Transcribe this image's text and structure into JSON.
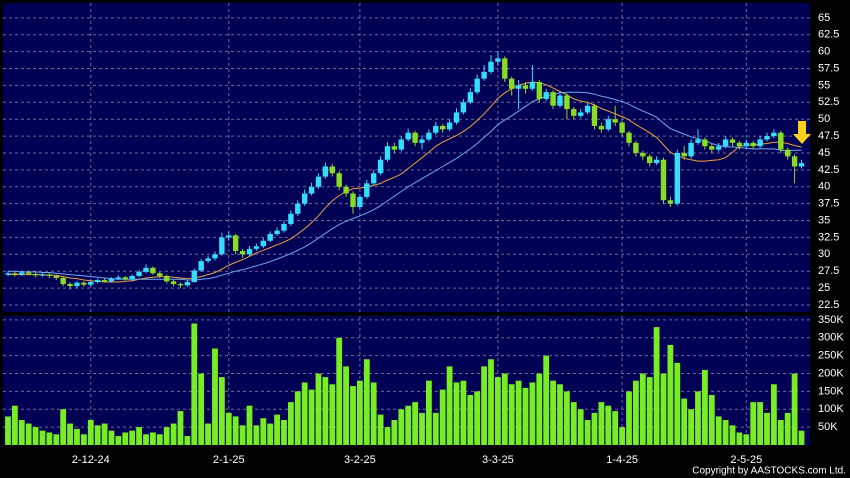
{
  "chart_data": [
    {
      "type": "candlestick",
      "up_color": "#33ddff",
      "down_color": "#88dd22",
      "xlim": [
        -0.72,
        116.23
      ],
      "ylim": [
        21.46,
        67.2
      ],
      "yticks": [
        22.5,
        25,
        27.5,
        30,
        32.5,
        35,
        37.5,
        40,
        42.5,
        45,
        47.5,
        50,
        52.5,
        55,
        57.5,
        60,
        62.5,
        65
      ],
      "xticks": [
        12,
        32,
        51,
        71,
        89,
        107
      ],
      "grid": true,
      "open": [
        27.0,
        27.2,
        27.0,
        27.3,
        27.1,
        26.9,
        27.0,
        26.8,
        26.5,
        25.6,
        25.3,
        25.8,
        25.5,
        25.9,
        26.2,
        26.0,
        26.4,
        26.6,
        26.3,
        26.8,
        27.4,
        28.0,
        27.2,
        26.8,
        26.0,
        25.6,
        25.4,
        25.9,
        27.6,
        29.0,
        29.4,
        30.0,
        32.5,
        32.8,
        30.5,
        30.0,
        30.8,
        31.2,
        32.0,
        33.0,
        33.5,
        34.5,
        36.0,
        37.5,
        39.0,
        40.0,
        41.5,
        43.0,
        42.0,
        40.0,
        39.0,
        37.0,
        38.5,
        40.5,
        42.0,
        44.0,
        46.0,
        45.5,
        47.0,
        48.0,
        46.5,
        47.0,
        48.0,
        49.0,
        48.5,
        49.5,
        51.0,
        52.5,
        54.0,
        56.0,
        57.0,
        58.5,
        59.0,
        56.0,
        54.5,
        55.0,
        54.5,
        55.5,
        53.0,
        54.0,
        52.0,
        53.5,
        51.5,
        50.5,
        51.0,
        52.0,
        49.0,
        48.5,
        50.0,
        49.5,
        48.0,
        46.5,
        45.0,
        44.5,
        43.5,
        44.0,
        38.0,
        37.5,
        45.0,
        44.5,
        46.5,
        47.0,
        46.0,
        45.5,
        46.0,
        47.0,
        46.5,
        46.0,
        46.5,
        46.0,
        47.0,
        47.5,
        48.0,
        45.5,
        44.5,
        43.0
      ],
      "high": [
        27.5,
        27.5,
        27.6,
        27.6,
        27.3,
        27.3,
        27.2,
        27.0,
        26.7,
        25.9,
        26.0,
        26.0,
        26.1,
        26.4,
        26.4,
        26.6,
        26.9,
        26.8,
        27.0,
        27.7,
        28.5,
        28.2,
        27.4,
        27.0,
        26.2,
        25.8,
        26.2,
        27.9,
        29.3,
        29.8,
        30.4,
        33.2,
        33.4,
        33.0,
        30.8,
        31.2,
        31.6,
        32.4,
        33.4,
        34.0,
        35.0,
        36.5,
        38.0,
        39.6,
        40.6,
        42.0,
        43.6,
        43.4,
        42.3,
        40.3,
        39.3,
        38.9,
        41.0,
        42.5,
        44.5,
        46.6,
        46.5,
        47.5,
        48.6,
        48.3,
        47.6,
        48.5,
        49.6,
        49.3,
        50.0,
        51.6,
        53.0,
        54.6,
        56.6,
        58.0,
        59.5,
        60.0,
        59.3,
        56.3,
        55.8,
        55.5,
        58.0,
        55.8,
        54.5,
        54.3,
        54.0,
        53.8,
        51.8,
        51.5,
        52.5,
        52.3,
        49.5,
        50.5,
        52.0,
        49.8,
        48.3,
        46.8,
        45.3,
        44.8,
        44.5,
        44.3,
        38.5,
        45.5,
        46.0,
        47.0,
        48.5,
        47.3,
        46.3,
        46.5,
        47.5,
        47.3,
        46.8,
        47.0,
        46.8,
        47.5,
        48.0,
        48.5,
        48.3,
        45.8,
        44.8,
        44.0
      ],
      "low": [
        26.8,
        26.7,
        26.8,
        26.9,
        26.6,
        26.7,
        26.5,
        26.2,
        25.3,
        24.8,
        25.0,
        25.2,
        25.3,
        25.7,
        25.8,
        25.8,
        26.2,
        26.1,
        26.1,
        26.6,
        27.2,
        27.0,
        26.5,
        25.7,
        25.3,
        25.0,
        25.2,
        25.8,
        27.4,
        28.7,
        29.1,
        29.8,
        32.0,
        30.0,
        29.5,
        29.7,
        30.5,
        30.9,
        31.8,
        32.7,
        33.2,
        34.2,
        35.7,
        37.2,
        38.7,
        39.7,
        41.2,
        41.5,
        39.5,
        38.5,
        36.0,
        36.7,
        38.2,
        40.2,
        41.7,
        43.7,
        45.0,
        45.2,
        46.7,
        46.0,
        45.5,
        46.7,
        47.7,
        48.0,
        48.2,
        49.2,
        50.7,
        52.2,
        53.7,
        55.7,
        56.7,
        58.0,
        55.5,
        53.5,
        51.5,
        53.8,
        54.2,
        52.5,
        52.7,
        51.5,
        51.7,
        50.0,
        50.0,
        50.2,
        50.7,
        48.5,
        48.0,
        48.2,
        49.0,
        47.5,
        46.0,
        44.5,
        44.0,
        43.0,
        43.2,
        37.5,
        37.0,
        37.2,
        44.0,
        44.2,
        46.2,
        45.5,
        45.0,
        45.2,
        45.7,
        46.0,
        45.5,
        45.7,
        45.5,
        45.7,
        46.7,
        47.2,
        45.0,
        44.0,
        40.5,
        42.7
      ],
      "close": [
        27.2,
        27.0,
        27.3,
        27.1,
        26.9,
        27.0,
        26.8,
        26.5,
        25.6,
        25.3,
        25.8,
        25.5,
        25.9,
        26.2,
        26.0,
        26.4,
        26.6,
        26.3,
        26.8,
        27.4,
        28.0,
        27.2,
        26.8,
        26.0,
        25.6,
        25.4,
        25.9,
        27.6,
        29.0,
        29.4,
        30.0,
        32.5,
        32.8,
        30.5,
        30.0,
        30.8,
        31.2,
        32.0,
        33.0,
        33.5,
        34.5,
        36.0,
        37.5,
        39.0,
        40.0,
        41.5,
        43.0,
        42.0,
        40.0,
        39.0,
        37.0,
        38.5,
        40.5,
        42.0,
        44.0,
        46.0,
        45.5,
        47.0,
        48.0,
        46.5,
        47.0,
        48.0,
        49.0,
        48.5,
        49.5,
        51.0,
        52.5,
        54.0,
        56.0,
        57.0,
        58.5,
        59.0,
        56.0,
        54.5,
        55.0,
        54.5,
        55.5,
        53.0,
        54.0,
        52.0,
        53.5,
        51.5,
        50.5,
        51.0,
        52.0,
        49.0,
        48.5,
        50.0,
        49.5,
        48.0,
        46.5,
        45.0,
        44.5,
        43.5,
        44.0,
        38.0,
        37.5,
        45.0,
        44.5,
        46.5,
        47.0,
        46.0,
        45.5,
        46.0,
        47.0,
        46.5,
        46.0,
        46.5,
        46.0,
        47.0,
        47.5,
        48.0,
        45.5,
        44.5,
        43.0,
        43.5
      ],
      "series": [
        {
          "color": "#f0a040",
          "values": [
            27.0,
            27.0,
            27.0,
            27.0,
            27.0,
            27.0,
            26.9,
            26.9,
            26.7,
            26.5,
            26.4,
            26.2,
            26.1,
            26.0,
            25.9,
            25.9,
            25.9,
            26.0,
            26.1,
            26.3,
            26.5,
            26.6,
            26.7,
            26.7,
            26.6,
            26.5,
            26.4,
            26.5,
            26.7,
            27.0,
            27.3,
            27.8,
            28.4,
            28.8,
            29.2,
            29.7,
            30.2,
            30.6,
            31.0,
            31.4,
            31.8,
            32.3,
            33.0,
            33.8,
            34.7,
            35.7,
            36.9,
            37.9,
            38.7,
            39.3,
            39.7,
            39.8,
            40.0,
            40.2,
            40.5,
            41.0,
            41.4,
            41.9,
            42.7,
            43.5,
            44.3,
            45.1,
            46.0,
            46.6,
            47.1,
            47.6,
            48.2,
            48.9,
            49.8,
            50.8,
            51.9,
            53.1,
            53.9,
            54.5,
            55.0,
            55.3,
            55.5,
            55.4,
            55.1,
            54.6,
            54.1,
            53.6,
            53.0,
            52.7,
            52.5,
            52.1,
            51.6,
            51.2,
            50.8,
            50.4,
            49.9,
            49.2,
            48.6,
            48.0,
            47.3,
            46.2,
            45.1,
            44.6,
            44.2,
            44.0,
            43.8,
            43.8,
            43.9,
            44.0,
            44.3,
            45.1,
            46.0,
            46.1,
            46.2,
            46.3,
            46.4,
            46.6,
            46.6,
            46.4,
            46.1,
            45.9
          ]
        },
        {
          "color": "#6fa8f0",
          "values": [
            27.5,
            27.5,
            27.4,
            27.4,
            27.4,
            27.3,
            27.3,
            27.2,
            27.1,
            27.0,
            26.9,
            26.8,
            26.7,
            26.6,
            26.5,
            26.4,
            26.3,
            26.3,
            26.3,
            26.3,
            26.3,
            26.3,
            26.3,
            26.3,
            26.3,
            26.3,
            26.2,
            26.2,
            26.3,
            26.4,
            26.6,
            26.9,
            27.2,
            27.5,
            27.7,
            28.0,
            28.3,
            28.6,
            28.9,
            29.3,
            29.7,
            30.1,
            30.6,
            31.1,
            31.7,
            32.4,
            33.1,
            33.8,
            34.4,
            34.9,
            35.3,
            35.7,
            36.1,
            36.6,
            37.2,
            37.9,
            38.6,
            39.3,
            40.0,
            40.6,
            41.2,
            41.8,
            42.4,
            43.0,
            43.6,
            44.2,
            44.9,
            45.6,
            46.4,
            47.3,
            48.2,
            49.2,
            49.9,
            50.5,
            51.2,
            51.9,
            52.6,
            53.0,
            53.4,
            53.7,
            53.9,
            54.0,
            54.0,
            54.0,
            53.9,
            53.7,
            53.4,
            53.2,
            52.9,
            52.6,
            52.2,
            51.7,
            51.2,
            50.8,
            50.3,
            49.4,
            48.6,
            48.2,
            47.8,
            47.4,
            47.1,
            46.8,
            46.4,
            46.1,
            45.9,
            45.9,
            45.8,
            45.7,
            45.6,
            45.6,
            45.6,
            45.6,
            45.4,
            45.3,
            45.4,
            45.4
          ]
        }
      ]
    },
    {
      "type": "bar",
      "color": "#77ee22",
      "xlim": [
        -0.72,
        116.23
      ],
      "ylim": [
        0,
        361000
      ],
      "yticks": [
        {
          "value": 50000,
          "label": "50K"
        },
        {
          "value": 100000,
          "label": "100K"
        },
        {
          "value": 150000,
          "label": "150K"
        },
        {
          "value": 200000,
          "label": "200K"
        },
        {
          "value": 250000,
          "label": "250K"
        },
        {
          "value": 300000,
          "label": "300K"
        },
        {
          "value": 350000,
          "label": "350K"
        }
      ],
      "xticks": [
        {
          "value": 12,
          "label": "2-12-24"
        },
        {
          "value": 32,
          "label": "2-1-25"
        },
        {
          "value": 51,
          "label": "3-2-25"
        },
        {
          "value": 71,
          "label": "3-3-25"
        },
        {
          "value": 89,
          "label": "1-4-25"
        },
        {
          "value": 107,
          "label": "2-5-25"
        }
      ],
      "grid": true,
      "values": [
        80000,
        110000,
        70000,
        60000,
        50000,
        40000,
        35000,
        30000,
        100000,
        60000,
        45000,
        30000,
        70000,
        55000,
        60000,
        40000,
        25000,
        35000,
        40000,
        50000,
        30000,
        35000,
        30000,
        50000,
        60000,
        95000,
        25000,
        340000,
        200000,
        60000,
        270000,
        190000,
        90000,
        80000,
        55000,
        110000,
        55000,
        75000,
        60000,
        85000,
        70000,
        120000,
        150000,
        175000,
        155000,
        200000,
        190000,
        170000,
        300000,
        220000,
        165000,
        180000,
        240000,
        175000,
        85000,
        50000,
        70000,
        100000,
        110000,
        120000,
        90000,
        180000,
        90000,
        155000,
        220000,
        175000,
        180000,
        140000,
        150000,
        220000,
        240000,
        190000,
        200000,
        170000,
        180000,
        160000,
        175000,
        200000,
        250000,
        180000,
        170000,
        150000,
        120000,
        100000,
        70000,
        90000,
        120000,
        110000,
        95000,
        50000,
        150000,
        180000,
        200000,
        190000,
        330000,
        200000,
        280000,
        230000,
        130000,
        100000,
        150000,
        210000,
        140000,
        80000,
        70000,
        55000,
        35000,
        30000,
        120000,
        120000,
        90000,
        170000,
        70000,
        90000,
        200000,
        40000
      ]
    }
  ],
  "footer": "Copyright by AASTOCKS.com Ltd."
}
